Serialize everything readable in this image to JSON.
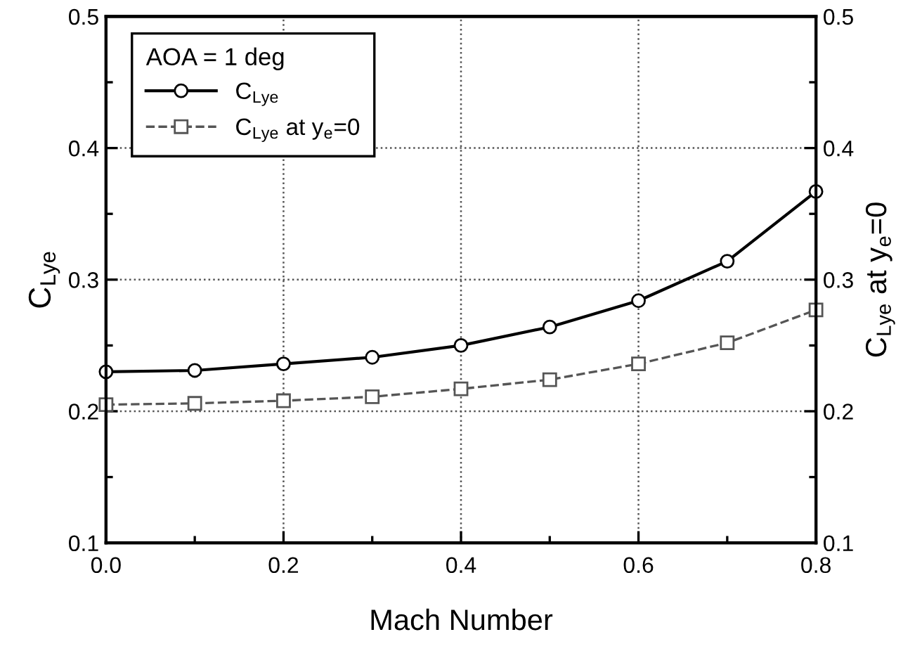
{
  "chart_data": {
    "type": "line",
    "xlabel": "Mach Number",
    "ylabel": "C$_{Lye}$",
    "y2label": "C$_{Lye}$ at y$_{e}$=0",
    "legend_title": "AOA = 1 deg",
    "x": [
      0.0,
      0.1,
      0.2,
      0.3,
      0.4,
      0.5,
      0.6,
      0.7,
      0.8
    ],
    "series": [
      {
        "name": "C$_{Lye}$",
        "color": "#000000",
        "values": [
          0.23,
          0.231,
          0.236,
          0.241,
          0.25,
          0.264,
          0.284,
          0.314,
          0.367
        ],
        "marker": "circle",
        "line_style": "solid"
      },
      {
        "name": "C$_{Lye}$ at y$_{e}$=0",
        "color": "#555555",
        "values": [
          0.205,
          0.206,
          0.208,
          0.211,
          0.217,
          0.224,
          0.236,
          0.252,
          0.277
        ],
        "marker": "square",
        "line_style": "dashed"
      }
    ],
    "xlim": [
      0.0,
      0.8
    ],
    "xticks": [
      "0.0",
      0.2,
      0.4,
      0.6,
      0.8,
      {
        "value": 0.1,
        "label": null
      },
      {
        "value": 0.3,
        "label": null
      },
      {
        "value": 0.5,
        "label": null
      },
      {
        "value": 0.7,
        "label": null
      }
    ],
    "ylim": [
      0.1,
      0.5
    ],
    "yticks": [
      0.1,
      0.2,
      0.3,
      0.4,
      0.5,
      {
        "value": 0.15,
        "label": null
      },
      {
        "value": 0.25,
        "label": null
      },
      {
        "value": 0.35,
        "label": null
      },
      {
        "value": 0.45,
        "label": null
      }
    ],
    "y2lim": [
      0.1,
      0.5
    ],
    "y2ticks": [
      0.1,
      0.2,
      0.3,
      0.4,
      0.5,
      {
        "value": 0.15,
        "label": null
      },
      {
        "value": 0.25,
        "label": null
      },
      {
        "value": 0.35,
        "label": null
      },
      {
        "value": 0.45,
        "label": null
      }
    ],
    "grid": true,
    "legend": "top left"
  }
}
